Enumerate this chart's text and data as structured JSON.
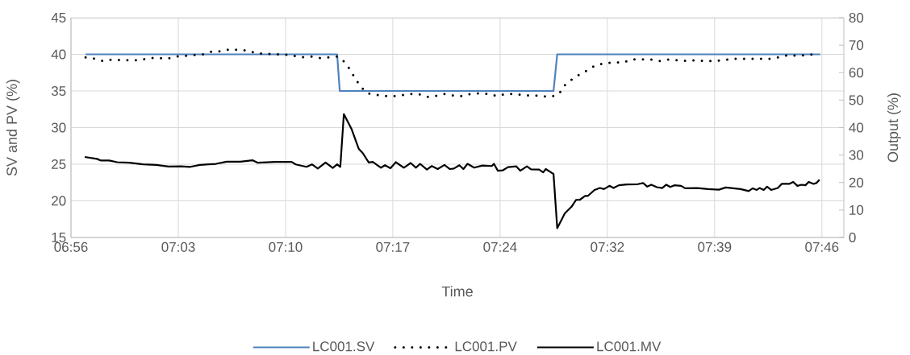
{
  "chart_data": {
    "type": "line",
    "xlabel": "Time",
    "ylabel": "SV and PV (%)",
    "y2label": "Output (%)",
    "xlim": [
      6.9333,
      7.7859
    ],
    "ylim": [
      15,
      45
    ],
    "y2lim": [
      0,
      80
    ],
    "xticks": [
      {
        "value": 6.9333,
        "label": "06:56"
      },
      {
        "value": 7.0517,
        "label": "07:03"
      },
      {
        "value": 7.17,
        "label": "07:10"
      },
      {
        "value": 7.2883,
        "label": "07:17"
      },
      {
        "value": 7.4067,
        "label": "07:24"
      },
      {
        "value": 7.525,
        "label": "07:32"
      },
      {
        "value": 7.6433,
        "label": "07:39"
      },
      {
        "value": 7.7617,
        "label": "07:46"
      }
    ],
    "yticks": [
      15,
      20,
      25,
      30,
      35,
      40,
      45
    ],
    "y2ticks": [
      0,
      10,
      20,
      30,
      40,
      50,
      60,
      70,
      80
    ],
    "grid": true,
    "legend": "bottom",
    "series": [
      {
        "name": "LC001.SV",
        "color": "#4f81bd",
        "line_style": "solid",
        "x": [
          6.9494,
          7.2269,
          7.2298,
          7.4656,
          7.4697,
          7.76
        ],
        "values": [
          40,
          40,
          35,
          35,
          40,
          40
        ]
      },
      {
        "name": "LC001.PV",
        "color": "#000000",
        "line_style": "dotted",
        "x": [
          6.9494,
          6.9599,
          6.9685,
          6.9789,
          6.9891,
          6.9993,
          7.0094,
          7.0198,
          7.0297,
          7.0395,
          7.049,
          7.0595,
          7.0693,
          7.0789,
          7.089,
          7.0989,
          7.1087,
          7.1186,
          7.1287,
          7.1383,
          7.1484,
          7.1586,
          7.1687,
          7.1788,
          7.1884,
          7.1982,
          7.2081,
          7.2176,
          7.2275,
          7.2358,
          7.2418,
          7.2468,
          7.2528,
          7.2597,
          7.2692,
          7.279,
          7.2886,
          7.2976,
          7.3074,
          7.3161,
          7.3259,
          7.3349,
          7.3444,
          7.3546,
          7.3644,
          7.3739,
          7.3841,
          7.394,
          7.4034,
          7.413,
          7.4229,
          7.4327,
          7.4426,
          7.4527,
          7.4629,
          7.4718,
          7.4772,
          7.4852,
          7.4936,
          7.5025,
          7.5117,
          7.5219,
          7.5321,
          7.5422,
          7.5524,
          7.5628,
          7.573,
          7.5831,
          7.5926,
          7.6025,
          7.6126,
          7.6225,
          7.6326,
          7.643,
          7.6535,
          7.6639,
          7.6741,
          7.6842,
          7.6941,
          7.7042,
          7.7144,
          7.7242,
          7.734,
          7.7442,
          7.7543
        ],
        "values": [
          39.6,
          39.4,
          39.1,
          39.3,
          39.2,
          39.2,
          39.2,
          39.5,
          39.5,
          39.4,
          39.7,
          39.8,
          39.9,
          40.0,
          40.4,
          40.4,
          40.7,
          40.6,
          40.5,
          40.1,
          40.1,
          40.0,
          40.0,
          39.8,
          39.6,
          39.7,
          39.5,
          39.6,
          39.7,
          38.9,
          37.8,
          36.7,
          35.6,
          34.7,
          34.5,
          34.3,
          34.3,
          34.4,
          34.6,
          34.6,
          34.2,
          34.3,
          34.6,
          34.4,
          34.3,
          34.6,
          34.7,
          34.6,
          34.3,
          34.6,
          34.6,
          34.4,
          34.4,
          34.3,
          34.2,
          34.6,
          35.7,
          36.5,
          37.2,
          37.8,
          38.5,
          38.8,
          38.9,
          38.9,
          39.3,
          39.3,
          39.3,
          39.1,
          39.3,
          39.2,
          39.1,
          39.2,
          39.1,
          39.1,
          39.2,
          39.4,
          39.4,
          39.4,
          39.4,
          39.4,
          39.6,
          39.9,
          39.8,
          39.9,
          40.0
        ]
      },
      {
        "name": "LC001.MV",
        "color": "#000000",
        "line_style": "solid",
        "axis": "y2",
        "x": [
          6.9485,
          6.9619,
          6.9664,
          6.9754,
          6.9843,
          6.9977,
          7.0127,
          7.0275,
          7.041,
          7.0544,
          7.0649,
          7.0753,
          7.0932,
          7.1051,
          7.1201,
          7.1335,
          7.1394,
          7.1588,
          7.1767,
          7.1812,
          7.1931,
          7.1991,
          7.2056,
          7.2141,
          7.2221,
          7.2269,
          7.2304,
          7.2343,
          7.243,
          7.2508,
          7.2552,
          7.2618,
          7.2662,
          7.2752,
          7.2797,
          7.2857,
          7.2916,
          7.3005,
          7.308,
          7.3139,
          7.3184,
          7.3259,
          7.3313,
          7.3378,
          7.3453,
          7.3513,
          7.3557,
          7.3617,
          7.3662,
          7.3707,
          7.3781,
          7.3871,
          7.3975,
          7.3999,
          7.4041,
          7.4094,
          7.4154,
          7.4244,
          7.4289,
          7.4363,
          7.4408,
          7.4497,
          7.4542,
          7.4571,
          7.4656,
          7.4697,
          7.4781,
          7.4855,
          7.4906,
          7.4945,
          7.5005,
          7.5034,
          7.5108,
          7.5168,
          7.5213,
          7.5273,
          7.5318,
          7.5377,
          7.5466,
          7.5586,
          7.5645,
          7.569,
          7.5735,
          7.5795,
          7.5855,
          7.59,
          7.5944,
          7.5989,
          7.6063,
          7.6108,
          7.6242,
          7.6361,
          7.6481,
          7.6556,
          7.6719,
          7.6809,
          7.6854,
          7.6898,
          7.6929,
          7.6974,
          7.7012,
          7.7057,
          7.7131,
          7.7173,
          7.7256,
          7.7301,
          7.7346,
          7.7391,
          7.7435,
          7.7471,
          7.7525,
          7.7555,
          7.7591
        ],
        "values": [
          29.3,
          28.6,
          28.0,
          28.0,
          27.4,
          27.2,
          26.6,
          26.4,
          25.8,
          25.9,
          25.7,
          26.4,
          26.8,
          27.6,
          27.6,
          28.1,
          27.2,
          27.5,
          27.5,
          26.6,
          25.7,
          26.6,
          25.1,
          27.3,
          25.3,
          26.6,
          25.7,
          44.9,
          39.3,
          32.2,
          30.7,
          27.3,
          27.5,
          25.4,
          26.3,
          25.2,
          27.4,
          25.4,
          27.1,
          25.4,
          26.8,
          24.7,
          26.0,
          24.9,
          26.4,
          24.9,
          25.1,
          26.3,
          24.9,
          26.8,
          25.4,
          26.2,
          26.0,
          26.8,
          24.3,
          24.4,
          25.6,
          25.9,
          24.3,
          25.9,
          24.8,
          24.7,
          23.7,
          24.9,
          23.1,
          3.4,
          8.8,
          11.2,
          13.7,
          13.7,
          15.1,
          15.1,
          17.3,
          18.0,
          17.6,
          18.8,
          18.0,
          19.0,
          19.3,
          19.4,
          19.8,
          18.5,
          19.2,
          18.3,
          18.0,
          19.2,
          18.4,
          19.0,
          18.8,
          17.9,
          18.0,
          17.6,
          17.4,
          18.2,
          17.6,
          16.9,
          17.9,
          17.3,
          18.0,
          17.3,
          18.5,
          17.3,
          18.0,
          19.5,
          19.5,
          20.2,
          18.8,
          19.2,
          19.0,
          20.2,
          19.5,
          19.8,
          21.0
        ]
      }
    ]
  }
}
